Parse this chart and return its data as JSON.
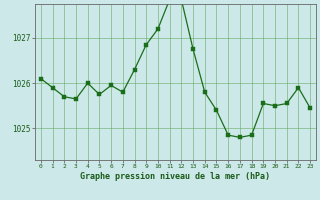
{
  "x": [
    0,
    1,
    2,
    3,
    4,
    5,
    6,
    7,
    8,
    9,
    10,
    11,
    12,
    13,
    14,
    15,
    16,
    17,
    18,
    19,
    20,
    21,
    22,
    23
  ],
  "y": [
    1026.1,
    1025.9,
    1025.7,
    1025.65,
    1026.0,
    1025.75,
    1025.95,
    1025.8,
    1026.3,
    1026.85,
    1027.2,
    1027.85,
    1027.85,
    1026.75,
    1025.8,
    1025.4,
    1024.85,
    1024.8,
    1024.85,
    1025.55,
    1025.5,
    1025.55,
    1025.9,
    1025.45
  ],
  "line_color": "#1a6e1a",
  "marker_color": "#1a6e1a",
  "bg_color": "#cce8e8",
  "grid_color": "#66aa66",
  "axis_label_color": "#1a5c1a",
  "tick_color": "#1a5c1a",
  "xlabel": "Graphe pression niveau de la mer (hPa)",
  "yticks": [
    1025,
    1026,
    1027
  ],
  "ylim": [
    1024.3,
    1027.75
  ],
  "xlim": [
    -0.5,
    23.5
  ]
}
